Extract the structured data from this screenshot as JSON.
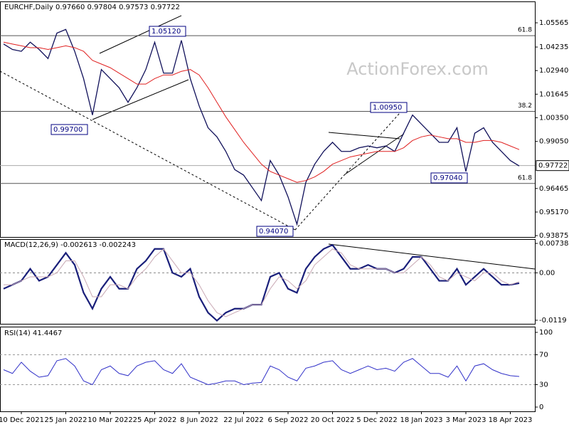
{
  "chart_data": [
    {
      "type": "line",
      "title": "EURCHF,Daily  0.97660 0.97804 0.97573 0.97722",
      "watermark": "ActionForex.com",
      "ylim": [
        0.938,
        1.0674
      ],
      "yticks": [
        1.05565,
        1.04235,
        {
          "value": 1.0294,
          "label": "1.02940"
        },
        1.01645,
        {
          "value": 1.0035,
          "label": "1.00350"
        },
        {
          "value": 0.9905,
          "label": "0.99050"
        },
        0.96465,
        {
          "value": 0.9517,
          "label": "0.95170"
        },
        0.93875
      ],
      "last": 0.97722,
      "levels": [
        {
          "value": 1.0486,
          "label": "61.8"
        },
        {
          "value": 1.007,
          "label": "38.2"
        },
        {
          "value": 0.9674,
          "label": "61.8"
        }
      ],
      "annotations": [
        "1.05120",
        "0.99700",
        "1.00950",
        "0.97040",
        "0.94070"
      ],
      "series": [
        {
          "name": "EURCHF",
          "color": "#10105a",
          "values": [
            1.044,
            1.041,
            1.04,
            1.045,
            1.041,
            1.036,
            1.05,
            1.052,
            1.04,
            1.025,
            1.005,
            1.03,
            1.025,
            1.02,
            1.012,
            1.02,
            1.03,
            1.045,
            1.028,
            1.028,
            1.046,
            1.025,
            1.01,
            0.998,
            0.993,
            0.985,
            0.975,
            0.972,
            0.965,
            0.958,
            0.98,
            0.972,
            0.96,
            0.945,
            0.968,
            0.978,
            0.985,
            0.99,
            0.985,
            0.985,
            0.987,
            0.988,
            0.987,
            0.988,
            0.985,
            0.995,
            1.005,
            1.0,
            0.995,
            0.99,
            0.99,
            0.998,
            0.974,
            0.995,
            0.998,
            0.99,
            0.985,
            0.98,
            0.977
          ]
        },
        {
          "name": "MA",
          "color": "#e02020",
          "values": [
            1.045,
            1.044,
            1.043,
            1.042,
            1.042,
            1.041,
            1.042,
            1.043,
            1.042,
            1.04,
            1.035,
            1.033,
            1.031,
            1.028,
            1.025,
            1.022,
            1.022,
            1.025,
            1.027,
            1.027,
            1.029,
            1.03,
            1.027,
            1.02,
            1.012,
            1.004,
            0.997,
            0.99,
            0.984,
            0.978,
            0.974,
            0.972,
            0.97,
            0.968,
            0.969,
            0.971,
            0.974,
            0.978,
            0.98,
            0.982,
            0.983,
            0.984,
            0.985,
            0.985,
            0.985,
            0.987,
            0.991,
            0.993,
            0.994,
            0.993,
            0.992,
            0.992,
            0.99,
            0.99,
            0.991,
            0.991,
            0.99,
            0.988,
            0.986
          ]
        }
      ]
    },
    {
      "type": "line",
      "title": "MACD(12,26,9) -0.002613 -0.002243",
      "ylim": [
        -0.0128,
        0.00846
      ],
      "yticks": [
        0.007384,
        {
          "value": 0,
          "label": "0.00"
        },
        -0.0119
      ],
      "series": [
        {
          "name": "MACD",
          "color": "#1a1f7a",
          "values": [
            -0.004,
            -0.003,
            -0.002,
            0.001,
            -0.002,
            -0.001,
            0.002,
            0.005,
            0.002,
            -0.005,
            -0.009,
            -0.004,
            -0.001,
            -0.004,
            -0.004,
            0.001,
            0.003,
            0.006,
            0.006,
            0.0,
            -0.001,
            0.001,
            -0.006,
            -0.01,
            -0.012,
            -0.01,
            -0.009,
            -0.009,
            -0.008,
            -0.008,
            -0.001,
            0.0,
            -0.004,
            -0.005,
            0.001,
            0.004,
            0.006,
            0.007,
            0.004,
            0.001,
            0.001,
            0.002,
            0.001,
            0.001,
            0.0,
            0.001,
            0.004,
            0.004,
            0.001,
            -0.002,
            -0.002,
            0.001,
            -0.003,
            -0.001,
            0.001,
            -0.001,
            -0.003,
            -0.003,
            -0.0026
          ]
        },
        {
          "name": "Signal",
          "color": "#c9a9b4",
          "values": [
            -0.003,
            -0.003,
            -0.002,
            -0.001,
            -0.001,
            -0.001,
            0.0,
            0.003,
            0.003,
            -0.001,
            -0.006,
            -0.006,
            -0.003,
            -0.003,
            -0.004,
            -0.001,
            0.001,
            0.004,
            0.006,
            0.003,
            0.0,
            0.0,
            -0.003,
            -0.007,
            -0.01,
            -0.011,
            -0.01,
            -0.009,
            -0.008,
            -0.008,
            -0.004,
            -0.001,
            -0.002,
            -0.004,
            -0.002,
            0.002,
            0.004,
            0.006,
            0.005,
            0.002,
            0.001,
            0.001,
            0.001,
            0.001,
            0.0,
            0.0,
            0.002,
            0.004,
            0.002,
            -0.001,
            -0.002,
            0.0,
            -0.001,
            -0.002,
            0.0,
            0.0,
            -0.002,
            -0.003,
            -0.0022
          ]
        }
      ]
    },
    {
      "type": "line",
      "title": "RSI(14) 41.4467",
      "ylim": [
        -5.7,
        107.6
      ],
      "yticks": [
        100,
        70,
        30,
        0
      ],
      "levels": [
        70,
        30
      ],
      "categories": [
        null,
        null,
        "10 Dec 2021",
        null,
        null,
        null,
        null,
        "25 Jan 2022",
        null,
        null,
        null,
        null,
        "10 Mar 2022",
        null,
        null,
        null,
        null,
        "25 Apr 2022",
        null,
        null,
        null,
        null,
        "8 Jun 2022",
        null,
        null,
        null,
        null,
        "22 Jul 2022",
        null,
        null,
        null,
        null,
        "6 Sep 2022",
        null,
        null,
        null,
        null,
        "20 Oct 2022",
        null,
        null,
        null,
        null,
        "5 Dec 2022",
        null,
        null,
        null,
        null,
        "18 Jan 2023",
        null,
        null,
        null,
        null,
        "3 Mar 2023",
        null,
        null,
        null,
        null,
        "18 Apr 2023",
        null
      ],
      "series": [
        {
          "name": "RSI",
          "color": "#3030c8",
          "values": [
            50,
            45,
            60,
            48,
            40,
            42,
            62,
            65,
            55,
            35,
            30,
            50,
            55,
            45,
            42,
            55,
            60,
            62,
            50,
            45,
            58,
            40,
            35,
            30,
            32,
            35,
            35,
            30,
            32,
            33,
            55,
            50,
            40,
            35,
            52,
            55,
            60,
            62,
            50,
            45,
            50,
            55,
            50,
            52,
            48,
            60,
            65,
            55,
            45,
            45,
            40,
            55,
            35,
            55,
            58,
            50,
            45,
            42,
            41
          ]
        }
      ]
    }
  ]
}
